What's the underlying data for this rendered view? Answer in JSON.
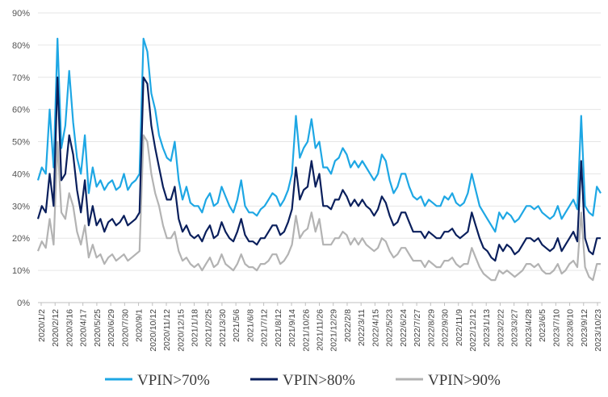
{
  "chart_data": {
    "type": "line",
    "title": "",
    "xlabel": "",
    "ylabel": "",
    "ylim": [
      0,
      90
    ],
    "yticks": [
      "0%",
      "10%",
      "20%",
      "30%",
      "40%",
      "50%",
      "60%",
      "70%",
      "80%",
      "90%"
    ],
    "x_tick_labels": [
      "2020/1/2",
      "2020/2/12",
      "2020/3/16",
      "2020/4/17",
      "2020/5/25",
      "2020/6/29",
      "2020/7/30",
      "2020/9/1",
      "2020/10/12",
      "2020/11/12",
      "2020/12/15",
      "2021/1/18",
      "2021/2/25",
      "2021/3/30",
      "2021/5/6",
      "2021/6/8",
      "2021/7/12",
      "2021/8/12",
      "2021/9/14",
      "2021/10/26",
      "2021/11/26",
      "2021/12/29",
      "2022/2/8",
      "2022/3/11",
      "2022/4/15",
      "2022/5/23",
      "2022/6/24",
      "2022/7/27",
      "2022/8/29",
      "2022/9/30",
      "2022/11/9",
      "2022/12/12",
      "2023/1/13",
      "2023/2/22",
      "2023/3/27",
      "2023/4/28",
      "2023/6/5",
      "2023/7/10",
      "2023/8/10",
      "2023/9/12",
      "2023/10/23"
    ],
    "series": [
      {
        "name": "VPIN>70%",
        "color": "#1ea7e4",
        "width": 2.2,
        "values": [
          38,
          42,
          40,
          60,
          42,
          82,
          48,
          55,
          72,
          56,
          45,
          40,
          52,
          34,
          42,
          36,
          38,
          35,
          37,
          38,
          35,
          36,
          40,
          35,
          37,
          38,
          40,
          82,
          78,
          65,
          60,
          52,
          48,
          45,
          44,
          50,
          38,
          32,
          36,
          31,
          30,
          30,
          28,
          32,
          34,
          30,
          31,
          36,
          33,
          30,
          28,
          32,
          38,
          30,
          28,
          28,
          27,
          29,
          30,
          32,
          34,
          33,
          30,
          32,
          35,
          40,
          58,
          45,
          48,
          50,
          57,
          48,
          50,
          42,
          42,
          40,
          44,
          45,
          48,
          46,
          42,
          44,
          42,
          44,
          42,
          40,
          38,
          40,
          46,
          44,
          38,
          34,
          36,
          40,
          40,
          36,
          33,
          32,
          33,
          30,
          32,
          31,
          30,
          30,
          33,
          32,
          34,
          31,
          30,
          31,
          34,
          40,
          35,
          30,
          28,
          26,
          24,
          22,
          28,
          26,
          28,
          27,
          25,
          26,
          28,
          30,
          30,
          29,
          30,
          28,
          27,
          26,
          27,
          30,
          26,
          28,
          30,
          32,
          29,
          58,
          30,
          28,
          27,
          36,
          34
        ]
      },
      {
        "name": "VPIN>80%",
        "color": "#0a1f5c",
        "width": 2.2,
        "values": [
          26,
          30,
          28,
          40,
          30,
          70,
          38,
          40,
          52,
          46,
          35,
          28,
          38,
          24,
          30,
          24,
          26,
          22,
          25,
          26,
          24,
          25,
          27,
          24,
          25,
          26,
          28,
          70,
          68,
          55,
          48,
          42,
          36,
          32,
          32,
          36,
          26,
          22,
          24,
          21,
          20,
          21,
          19,
          22,
          24,
          20,
          21,
          25,
          22,
          20,
          19,
          22,
          26,
          21,
          19,
          19,
          18,
          20,
          20,
          22,
          24,
          24,
          21,
          22,
          25,
          29,
          42,
          32,
          35,
          36,
          44,
          36,
          40,
          30,
          30,
          29,
          32,
          32,
          35,
          33,
          30,
          32,
          30,
          32,
          30,
          29,
          27,
          29,
          33,
          31,
          27,
          24,
          25,
          28,
          28,
          25,
          22,
          22,
          22,
          20,
          22,
          21,
          20,
          20,
          22,
          22,
          23,
          21,
          20,
          21,
          22,
          28,
          24,
          20,
          17,
          16,
          14,
          13,
          18,
          16,
          18,
          17,
          15,
          16,
          18,
          20,
          20,
          19,
          20,
          18,
          17,
          16,
          17,
          20,
          16,
          18,
          20,
          22,
          19,
          44,
          20,
          16,
          15,
          20,
          20
        ]
      },
      {
        "name": "VPIN>90%",
        "color": "#b3b3b3",
        "width": 2.2,
        "values": [
          16,
          19,
          17,
          26,
          18,
          50,
          28,
          26,
          34,
          30,
          22,
          18,
          24,
          14,
          18,
          14,
          15,
          12,
          14,
          15,
          13,
          14,
          15,
          13,
          14,
          15,
          16,
          52,
          50,
          40,
          34,
          30,
          24,
          20,
          20,
          22,
          16,
          13,
          14,
          12,
          11,
          12,
          10,
          12,
          14,
          11,
          12,
          15,
          12,
          11,
          10,
          12,
          15,
          12,
          11,
          11,
          10,
          12,
          12,
          13,
          15,
          15,
          12,
          13,
          15,
          18,
          27,
          20,
          22,
          23,
          28,
          22,
          26,
          18,
          18,
          18,
          20,
          20,
          22,
          21,
          18,
          20,
          18,
          20,
          18,
          17,
          16,
          17,
          20,
          19,
          16,
          14,
          15,
          17,
          17,
          15,
          13,
          13,
          13,
          11,
          13,
          12,
          11,
          11,
          13,
          13,
          14,
          12,
          11,
          12,
          12,
          17,
          14,
          11,
          9,
          8,
          7,
          7,
          10,
          9,
          10,
          9,
          8,
          9,
          10,
          12,
          12,
          11,
          12,
          10,
          9,
          9,
          10,
          12,
          9,
          10,
          12,
          13,
          11,
          28,
          11,
          8,
          7,
          12,
          12
        ]
      }
    ],
    "legend": {
      "position": "bottom"
    }
  }
}
